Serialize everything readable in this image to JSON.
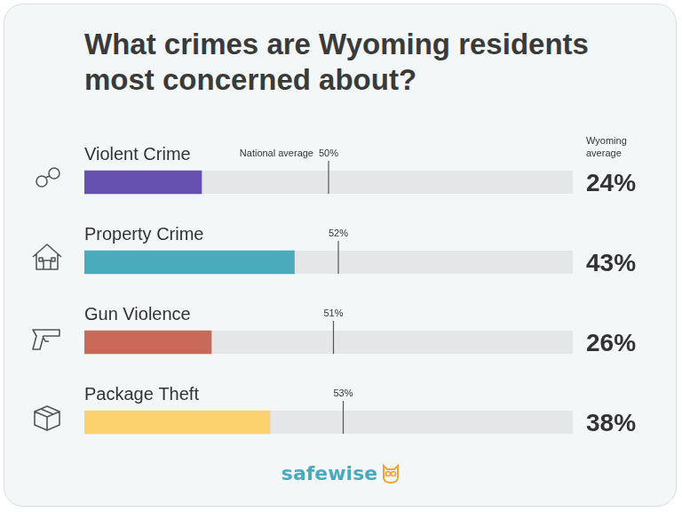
{
  "chart_data": {
    "type": "bar",
    "orientation": "horizontal",
    "title": "What crimes are Wyoming residents most concerned about?",
    "categories": [
      "Violent Crime",
      "Property Crime",
      "Gun Violence",
      "Package Theft"
    ],
    "series": [
      {
        "name": "Wyoming average",
        "values": [
          24,
          43,
          26,
          38
        ],
        "value_labels": [
          "24%",
          "43%",
          "26%",
          "38%"
        ],
        "colors": [
          "#6650b0",
          "#4aabbd",
          "#c8695a",
          "#fcd26f"
        ]
      },
      {
        "name": "National average",
        "type": "marker",
        "marker": "line",
        "color": "#555555",
        "values": [
          50,
          52,
          51,
          53
        ],
        "value_labels": [
          "50%",
          "52%",
          "51%",
          "53%"
        ]
      }
    ],
    "xlim": [
      0,
      100
    ],
    "tick_labels": false,
    "grid": false,
    "data_labels": true
  },
  "footer": {
    "brand": "safewise"
  }
}
